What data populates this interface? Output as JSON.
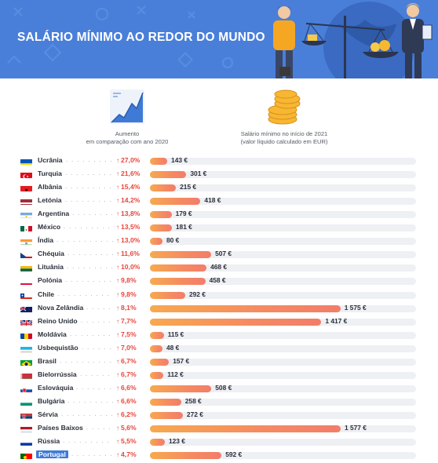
{
  "header": {
    "title": "SALÁRIO MÍNIMO AO REDOR DO MUNDO"
  },
  "legend": {
    "increase_label_1": "Aumento",
    "increase_label_2": "em comparação com ano 2020",
    "wage_label_1": "Salário mínimo no início de 2021",
    "wage_label_2": "(valor líquido calculado em EUR)"
  },
  "colors": {
    "header_bg": "#4a7fd9",
    "increase": "#e8453c",
    "bar_start": "#f7a94f",
    "bar_end": "#f27d6a",
    "highlight": "#3f7ad6"
  },
  "chart_data": {
    "type": "bar",
    "title": "SALÁRIO MÍNIMO AO REDOR DO MUNDO",
    "categories": [
      "Ucrânia",
      "Turquia",
      "Albânia",
      "Letónia",
      "Argentina",
      "México",
      "Índia",
      "Chéquia",
      "Lituânia",
      "Polónia",
      "Chile",
      "Nova Zelândia",
      "Reino Unido",
      "Moldávia",
      "Usbequistão",
      "Brasil",
      "Bielorrússia",
      "Eslováquia",
      "Bulgária",
      "Sérvia",
      "Países Baixos",
      "Rússia",
      "Portugal"
    ],
    "series": [
      {
        "name": "Aumento",
        "values": [
          27.0,
          21.6,
          15.4,
          14.2,
          13.8,
          13.5,
          13.0,
          11.6,
          10.0,
          9.8,
          9.8,
          8.1,
          7.7,
          7.5,
          7.0,
          6.7,
          6.7,
          6.6,
          6.6,
          6.2,
          5.6,
          5.5,
          4.7
        ],
        "labels": [
          "27,0%",
          "21,6%",
          "15,4%",
          "14,2%",
          "13,8%",
          "13,5%",
          "13,0%",
          "11,6%",
          "10,0%",
          "9,8%",
          "9,8%",
          "8,1%",
          "7,7%",
          "7,5%",
          "7,0%",
          "6,7%",
          "6,7%",
          "6,6%",
          "6,6%",
          "6,2%",
          "5,6%",
          "5,5%",
          "4,7%"
        ]
      },
      {
        "name": "Salário mínimo no início de 2021",
        "values": [
          143,
          301,
          215,
          418,
          179,
          181,
          80,
          507,
          468,
          458,
          292,
          1575,
          1417,
          115,
          48,
          157,
          112,
          508,
          258,
          272,
          1577,
          123,
          592
        ],
        "labels": [
          "143 €",
          "301 €",
          "215 €",
          "418 €",
          "179 €",
          "181 €",
          "80 €",
          "507 €",
          "468 €",
          "458 €",
          "292 €",
          "1 575 €",
          "1 417 €",
          "115 €",
          "48 €",
          "157 €",
          "112 €",
          "508 €",
          "258 €",
          "272 €",
          "1 577 €",
          "123 €",
          "592 €"
        ]
      }
    ],
    "flags": [
      "ua",
      "tr",
      "al",
      "lv",
      "ar",
      "mx",
      "in",
      "cz",
      "lt",
      "pl",
      "cl",
      "nz",
      "gb",
      "md",
      "uz",
      "br",
      "by",
      "sk",
      "bg",
      "rs",
      "nl",
      "ru",
      "pt"
    ],
    "highlight": "Portugal",
    "xlim": [
      0,
      2200
    ]
  }
}
